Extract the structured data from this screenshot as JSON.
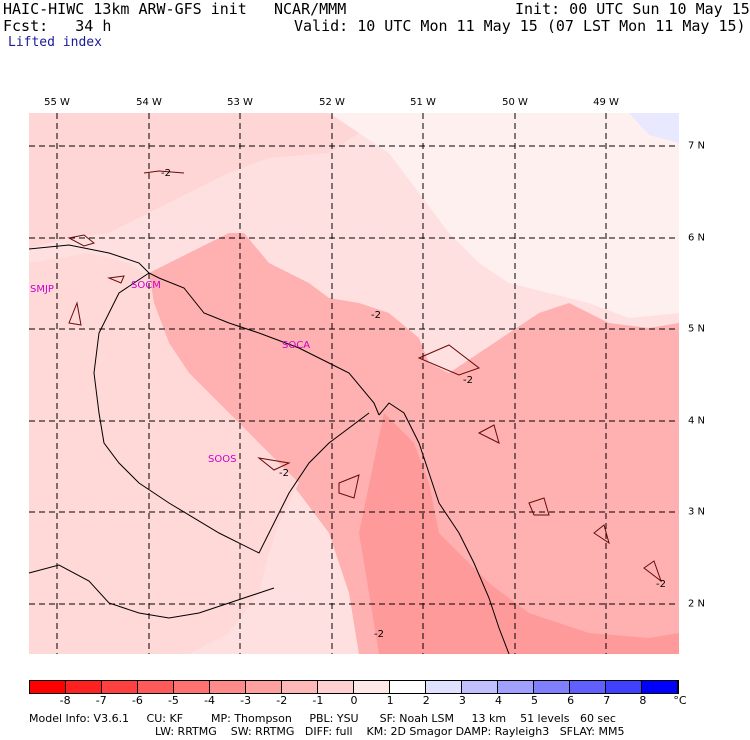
{
  "header": {
    "model": "HAIC-HIWC 13km ARW-GFS init",
    "org": "NCAR/MMM",
    "init": "Init: 00 UTC Sun 10 May 15",
    "fcst": "Fcst:   34 h",
    "valid": "Valid: 10 UTC Mon 11 May 15 (07 LST Mon 11 May 15)",
    "field": "Lifted index"
  },
  "map": {
    "lon_labels": [
      "55 W",
      "54 W",
      "53 W",
      "52 W",
      "51 W",
      "50 W",
      "49 W"
    ],
    "lat_labels": [
      "7 N",
      "6 N",
      "5 N",
      "4 N",
      "3 N",
      "2 N"
    ],
    "contour_label": "-2",
    "stations": [
      "SMJP",
      "SOCM",
      "SOCA",
      "SOOS"
    ],
    "colors": {
      "land_cool": "#ffd0d0",
      "mid": "#ffb0b0",
      "warm": "#ff9a9a",
      "lightest": "#fff0f0",
      "faint_blue": "#e8e8ff"
    }
  },
  "colorbar": {
    "labels": [
      "-8",
      "-7",
      "-6",
      "-5",
      "-4",
      "-3",
      "-2",
      "-1",
      "0",
      "1",
      "2",
      "3",
      "4",
      "5",
      "6",
      "7",
      "8"
    ],
    "unit": "°C",
    "colors": [
      "#ff0000",
      "#ff2020",
      "#ff4040",
      "#ff5a5a",
      "#ff7070",
      "#ff8a8a",
      "#ffa0a0",
      "#ffb8b8",
      "#ffd0d0",
      "#ffe8e8",
      "#ffffff",
      "#e0e0ff",
      "#c0c0ff",
      "#a0a0ff",
      "#8080ff",
      "#6060ff",
      "#4040ff",
      "#0000ff"
    ]
  },
  "footer": {
    "line1": "Model Info: V3.6.1     CU: KF        MP: Thompson     PBL: YSU      SF: Noah LSM     13 km    51 levels   60 sec",
    "line2": "LW: RRTMG    SW: RRTMG   DIFF: full    KM: 2D Smagor DAMP: Rayleigh3   SFLAY: MM5"
  }
}
